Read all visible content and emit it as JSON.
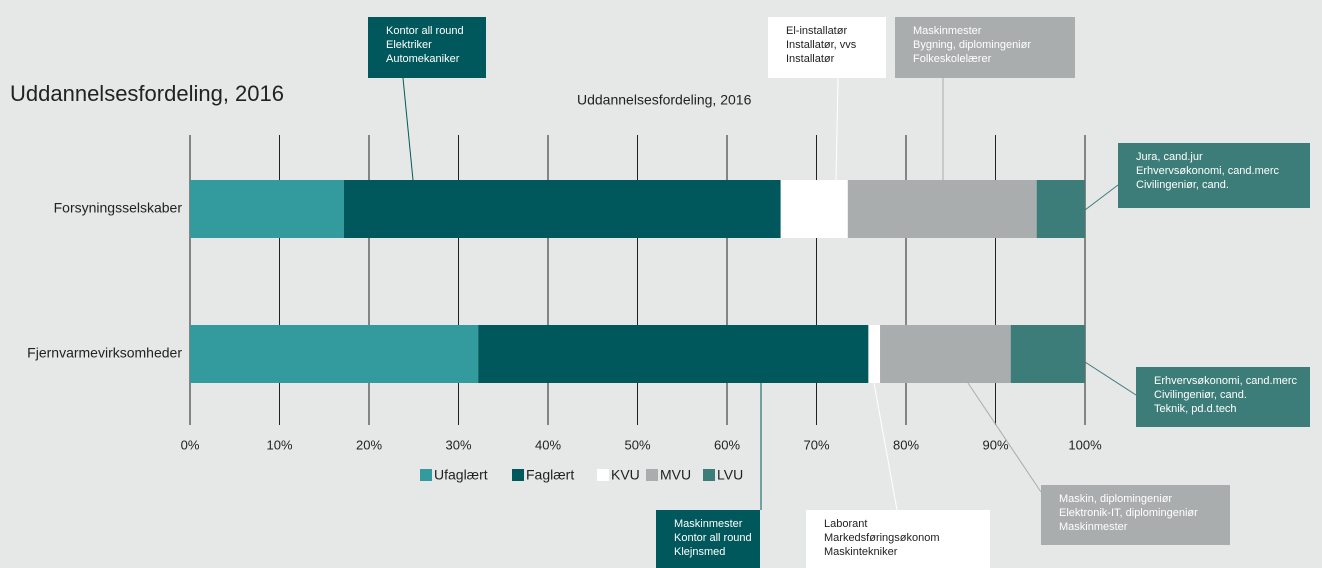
{
  "chart_data": {
    "type": "stacked_barh",
    "title": "Uddannelsesfordeling, 2016",
    "subtitle": "Uddannelsesfordeling, 2016",
    "categories": [
      "Forsyningsselskaber",
      "Fjernvarmevirksomheder"
    ],
    "series": [
      {
        "name": "Ufaglært",
        "color": "#339a9e",
        "values": [
          17.2,
          32.2
        ]
      },
      {
        "name": "Faglært",
        "color": "#00585c",
        "values": [
          48.8,
          43.6
        ]
      },
      {
        "name": "KVU",
        "color": "#ffffff",
        "values": [
          7.5,
          1.3
        ]
      },
      {
        "name": "MVU",
        "color": "#a9adae",
        "values": [
          21.1,
          14.6
        ]
      },
      {
        "name": "LVU",
        "color": "#3c7d79",
        "values": [
          5.4,
          8.3
        ]
      }
    ],
    "xlim": [
      0,
      100
    ],
    "xticks": [
      {
        "value": 0,
        "label": "0%"
      },
      {
        "value": 10,
        "label": "10%"
      },
      {
        "value": 20,
        "label": "20%"
      },
      {
        "value": 30,
        "label": "30%"
      },
      {
        "value": 40,
        "label": "40%"
      },
      {
        "value": 50,
        "label": "50%"
      },
      {
        "value": 60,
        "label": "60%"
      },
      {
        "value": 70,
        "label": "70%"
      },
      {
        "value": 80,
        "label": "80%"
      },
      {
        "value": 90,
        "label": "90%"
      },
      {
        "value": 100,
        "label": "100%"
      }
    ],
    "grid": true,
    "legend": "bottom",
    "annotations": [
      {
        "lines": [
          "Kontor all round",
          "Elektriker",
          "Automekaniker"
        ],
        "color": "#00585c"
      },
      {
        "lines": [
          "El-installatør",
          "Installatør, vvs",
          "Installatør"
        ],
        "color": "#ffffff"
      },
      {
        "lines": [
          "Maskinmester",
          "Bygning, diplomingeniør",
          "Folkeskolelærer"
        ],
        "color": "#a9adae"
      },
      {
        "lines": [
          "Jura, cand.jur",
          "Erhvervsøkonomi, cand.merc",
          "Civilingeniør, cand."
        ],
        "color": "#3c7d79"
      },
      {
        "lines": [
          "Erhvervsøkonomi, cand.merc",
          "Civilingeniør, cand.",
          "Teknik, pd.d.tech"
        ],
        "color": "#3c7d79"
      },
      {
        "lines": [
          "Maskin, diplomingeniør",
          "Elektronik-IT, diplomingeniør",
          "Maskinmester"
        ],
        "color": "#a9adae"
      },
      {
        "lines": [
          "Maskinmester",
          "Kontor all round",
          "Klejnsmed"
        ],
        "color": "#00585c"
      },
      {
        "lines": [
          "Laborant",
          "Markedsføringsøkonom",
          "Maskintekniker"
        ],
        "color": "#ffffff"
      }
    ]
  }
}
